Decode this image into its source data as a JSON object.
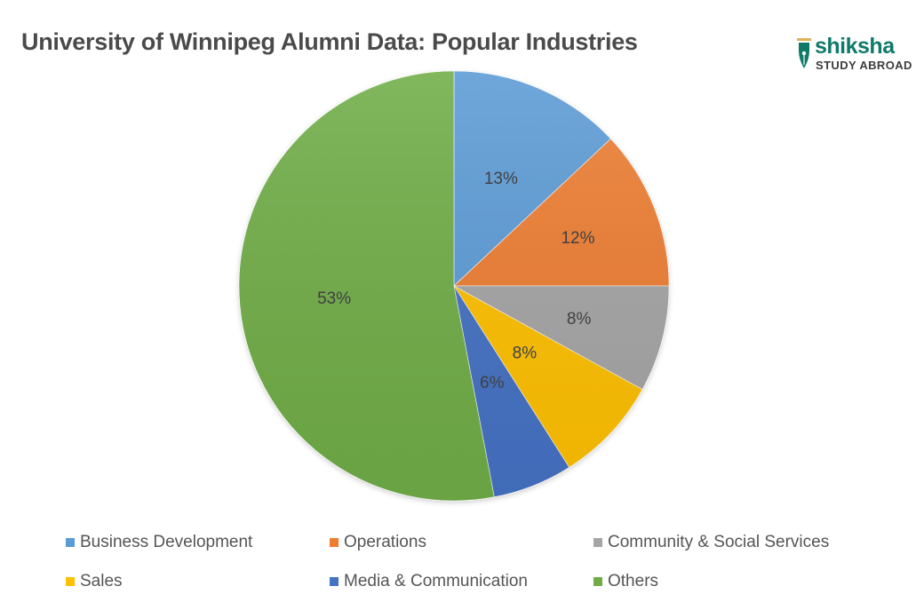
{
  "title": "University of Winnipeg Alumni Data: Popular Industries",
  "logo": {
    "brand": "shiksha",
    "sub": "STUDY ABROAD",
    "color": "#0f7a6a"
  },
  "chart_data": {
    "type": "pie",
    "title": "University of Winnipeg Alumni Data: Popular Industries",
    "categories": [
      "Business Development",
      "Operations",
      "Community & Social Services",
      "Sales",
      "Media & Communication",
      "Others"
    ],
    "values": [
      13,
      12,
      8,
      8,
      6,
      53
    ],
    "labels": [
      "13%",
      "12%",
      "8%",
      "8%",
      "6%",
      "53%"
    ],
    "colors": [
      "#5b9bd5",
      "#ed7d31",
      "#a5a5a5",
      "#ffc000",
      "#4472c4",
      "#70ad47"
    ],
    "start_angle": "12 o'clock",
    "direction": "clockwise",
    "legend_position": "bottom",
    "legend": [
      {
        "label": "Business Development",
        "color": "#5b9bd5"
      },
      {
        "label": "Operations",
        "color": "#ed7d31"
      },
      {
        "label": "Community & Social Services",
        "color": "#a5a5a5"
      },
      {
        "label": "Sales",
        "color": "#ffc000"
      },
      {
        "label": "Media & Communication",
        "color": "#4472c4"
      },
      {
        "label": "Others",
        "color": "#70ad47"
      }
    ]
  }
}
